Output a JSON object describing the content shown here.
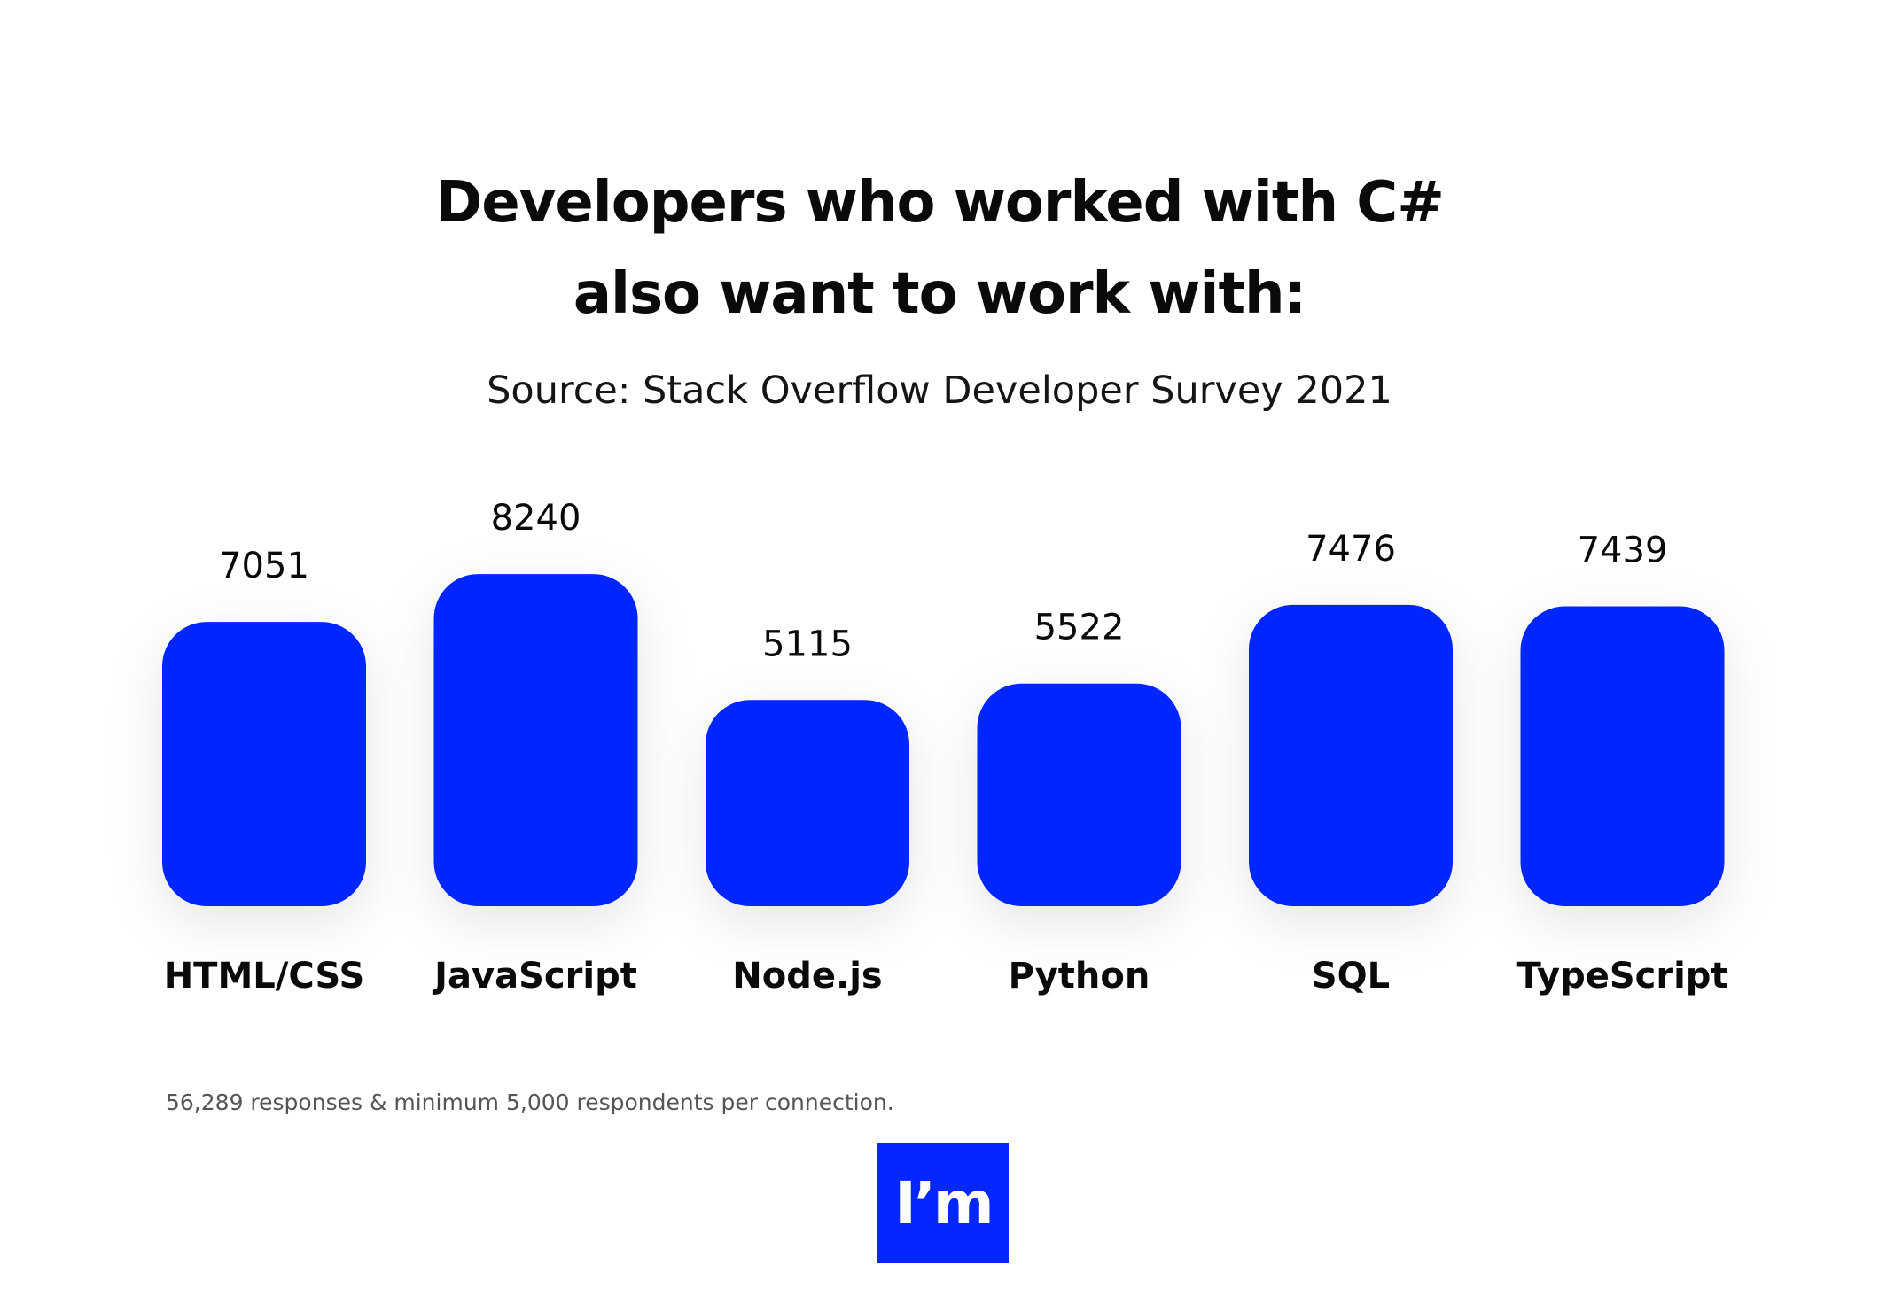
{
  "title_lines": [
    "Developers who worked with C#",
    "also want to work with:"
  ],
  "subtitle": "Source: Stack Overflow Developer Survey 2021",
  "footnote": "56,289 responses & minimum 5,000 respondents per connection.",
  "logo_text": "I’m",
  "colors": {
    "bar": "#0527FF",
    "logo_bg": "#0527FF",
    "text": "#0A0A0A"
  },
  "chart_data": {
    "type": "bar",
    "title": "Developers who worked with C# also want to work with:",
    "subtitle": "Source: Stack Overflow Developer Survey 2021",
    "categories": [
      "HTML/CSS",
      "JavaScript",
      "Node.js",
      "Python",
      "SQL",
      "TypeScript"
    ],
    "values": [
      7051,
      8240,
      5115,
      5522,
      7476,
      7439
    ],
    "xlabel": "",
    "ylabel": "",
    "grid": false,
    "data_labels": true
  }
}
